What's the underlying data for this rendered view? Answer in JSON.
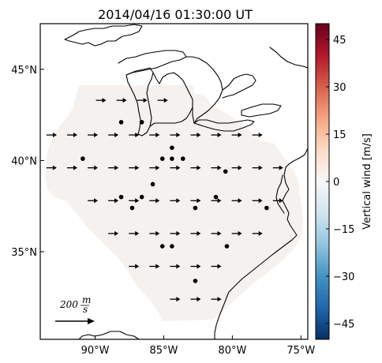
{
  "title": "2014/04/16 01:30:00 UT",
  "map": {
    "lon_range": [
      -94.0,
      -74.5
    ],
    "lat_range": [
      30.2,
      47.5
    ],
    "lon_ticks": [
      {
        "value": -90,
        "label": "90°W"
      },
      {
        "value": -85,
        "label": "85°W"
      },
      {
        "value": -80,
        "label": "80°W"
      },
      {
        "value": -75,
        "label": "75°W"
      }
    ],
    "lat_ticks": [
      {
        "value": 45,
        "label": "45°N"
      },
      {
        "value": 40,
        "label": "40°N"
      },
      {
        "value": 35,
        "label": "35°N"
      }
    ],
    "region_fill_color": "#f5f1ee",
    "wind_vectors": [
      {
        "lon": -89.6,
        "lat": 43.3
      },
      {
        "lon": -88.1,
        "lat": 43.3
      },
      {
        "lon": -86.6,
        "lat": 43.3
      },
      {
        "lon": -85.1,
        "lat": 43.3
      },
      {
        "lon": -93.2,
        "lat": 41.4
      },
      {
        "lon": -91.7,
        "lat": 41.4
      },
      {
        "lon": -90.2,
        "lat": 41.4
      },
      {
        "lon": -88.7,
        "lat": 41.4
      },
      {
        "lon": -87.2,
        "lat": 41.4
      },
      {
        "lon": -85.7,
        "lat": 41.4
      },
      {
        "lon": -84.2,
        "lat": 41.4
      },
      {
        "lon": -82.7,
        "lat": 41.4
      },
      {
        "lon": -81.2,
        "lat": 41.4
      },
      {
        "lon": -79.7,
        "lat": 41.4
      },
      {
        "lon": -78.2,
        "lat": 41.4
      },
      {
        "lon": -93.2,
        "lat": 39.6
      },
      {
        "lon": -91.7,
        "lat": 39.6
      },
      {
        "lon": -90.2,
        "lat": 39.6
      },
      {
        "lon": -88.7,
        "lat": 39.6
      },
      {
        "lon": -87.2,
        "lat": 39.6
      },
      {
        "lon": -85.7,
        "lat": 39.6
      },
      {
        "lon": -84.2,
        "lat": 39.6
      },
      {
        "lon": -82.7,
        "lat": 39.6
      },
      {
        "lon": -81.2,
        "lat": 39.6
      },
      {
        "lon": -79.7,
        "lat": 39.6
      },
      {
        "lon": -78.2,
        "lat": 39.6
      },
      {
        "lon": -76.7,
        "lat": 39.6
      },
      {
        "lon": -90.2,
        "lat": 37.8
      },
      {
        "lon": -88.7,
        "lat": 37.8
      },
      {
        "lon": -87.2,
        "lat": 37.8
      },
      {
        "lon": -85.7,
        "lat": 37.8
      },
      {
        "lon": -84.2,
        "lat": 37.8
      },
      {
        "lon": -82.7,
        "lat": 37.8
      },
      {
        "lon": -81.2,
        "lat": 37.8
      },
      {
        "lon": -79.7,
        "lat": 37.8
      },
      {
        "lon": -78.2,
        "lat": 37.8
      },
      {
        "lon": -76.7,
        "lat": 37.8
      },
      {
        "lon": -88.7,
        "lat": 36.0
      },
      {
        "lon": -87.2,
        "lat": 36.0
      },
      {
        "lon": -85.7,
        "lat": 36.0
      },
      {
        "lon": -84.2,
        "lat": 36.0
      },
      {
        "lon": -82.7,
        "lat": 36.0
      },
      {
        "lon": -81.2,
        "lat": 36.0
      },
      {
        "lon": -79.7,
        "lat": 36.0
      },
      {
        "lon": -78.2,
        "lat": 36.0
      },
      {
        "lon": -87.2,
        "lat": 34.2
      },
      {
        "lon": -85.7,
        "lat": 34.2
      },
      {
        "lon": -84.2,
        "lat": 34.2
      },
      {
        "lon": -82.7,
        "lat": 34.2
      },
      {
        "lon": -81.2,
        "lat": 34.2
      },
      {
        "lon": -84.2,
        "lat": 32.4
      },
      {
        "lon": -82.7,
        "lat": 32.4
      },
      {
        "lon": -81.2,
        "lat": 32.4
      }
    ],
    "stations": [
      {
        "lon": -88.1,
        "lat": 42.1
      },
      {
        "lon": -86.6,
        "lat": 42.1
      },
      {
        "lon": -90.9,
        "lat": 40.1
      },
      {
        "lon": -84.4,
        "lat": 40.7
      },
      {
        "lon": -85.1,
        "lat": 40.1
      },
      {
        "lon": -84.4,
        "lat": 40.1
      },
      {
        "lon": -83.6,
        "lat": 40.1
      },
      {
        "lon": -80.5,
        "lat": 39.4
      },
      {
        "lon": -85.8,
        "lat": 38.7
      },
      {
        "lon": -88.1,
        "lat": 38.0
      },
      {
        "lon": -86.6,
        "lat": 38.0
      },
      {
        "lon": -87.3,
        "lat": 37.4
      },
      {
        "lon": -82.7,
        "lat": 37.4
      },
      {
        "lon": -81.2,
        "lat": 38.0
      },
      {
        "lon": -77.5,
        "lat": 37.4
      },
      {
        "lon": -85.1,
        "lat": 35.3
      },
      {
        "lon": -84.4,
        "lat": 35.3
      },
      {
        "lon": -80.4,
        "lat": 35.3
      },
      {
        "lon": -82.7,
        "lat": 33.4
      }
    ],
    "scale": {
      "label": "200 m/s",
      "label_num": "200",
      "label_unit_num": "m",
      "label_unit_den": "s"
    }
  },
  "colorbar": {
    "label": "Vertical wind [m/s]",
    "min": -50,
    "max": 50,
    "ticks": [
      {
        "value": 45,
        "label": "45"
      },
      {
        "value": 30,
        "label": "30"
      },
      {
        "value": 15,
        "label": "15"
      },
      {
        "value": 0,
        "label": "0"
      },
      {
        "value": -15,
        "label": "−15"
      },
      {
        "value": -30,
        "label": "−30"
      },
      {
        "value": -45,
        "label": "−45"
      }
    ],
    "colormap": "RdBu_r",
    "stops": [
      "#053061",
      "#2166ac",
      "#4393c3",
      "#92c5de",
      "#d1e5f0",
      "#f7f7f7",
      "#fddbc7",
      "#f4a582",
      "#d6604d",
      "#b2182b",
      "#67001f"
    ]
  }
}
